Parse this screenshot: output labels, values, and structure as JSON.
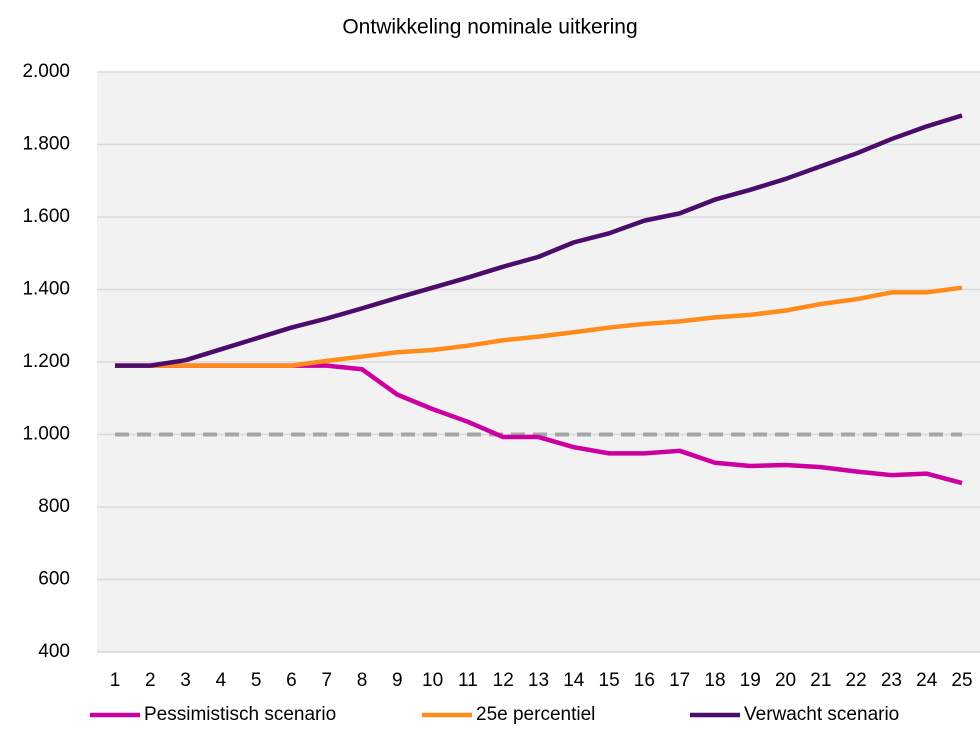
{
  "chart_data": {
    "type": "line",
    "title": "Ontwikkeling nominale uitkering",
    "categories": [
      "1",
      "2",
      "3",
      "4",
      "5",
      "6",
      "7",
      "8",
      "9",
      "10",
      "11",
      "12",
      "13",
      "14",
      "15",
      "16",
      "17",
      "18",
      "19",
      "20",
      "21",
      "22",
      "23",
      "24",
      "25"
    ],
    "series": [
      {
        "name": "Pessimistisch scenario",
        "color": "#cc00a0",
        "values": [
          1190,
          1190,
          1190,
          1190,
          1190,
          1190,
          1190,
          1180,
          1110,
          1070,
          1035,
          993,
          993,
          965,
          948,
          948,
          955,
          922,
          913,
          916,
          910,
          898,
          888,
          892,
          866
        ]
      },
      {
        "name": "25e percentiel",
        "color": "#ff8c1a",
        "values": [
          1190,
          1190,
          1190,
          1190,
          1190,
          1190,
          1203,
          1215,
          1227,
          1233,
          1245,
          1260,
          1270,
          1282,
          1295,
          1305,
          1312,
          1323,
          1330,
          1342,
          1360,
          1373,
          1392,
          1392,
          1405
        ]
      },
      {
        "name": "Verwacht scenario",
        "color": "#4b0d6b",
        "values": [
          1190,
          1190,
          1205,
          1235,
          1265,
          1295,
          1320,
          1348,
          1377,
          1405,
          1433,
          1463,
          1490,
          1530,
          1555,
          1590,
          1610,
          1648,
          1675,
          1705,
          1740,
          1775,
          1815,
          1850,
          1880
        ]
      }
    ],
    "reference_line": 1000,
    "ylim": [
      400,
      2000
    ],
    "yticks": [
      {
        "value": 400,
        "label": "400"
      },
      {
        "value": 600,
        "label": "600"
      },
      {
        "value": 800,
        "label": "800"
      },
      {
        "value": 1000,
        "label": "1.000"
      },
      {
        "value": 1200,
        "label": "1.200"
      },
      {
        "value": 1400,
        "label": "1.400"
      },
      {
        "value": 1600,
        "label": "1.600"
      },
      {
        "value": 1800,
        "label": "1.800"
      },
      {
        "value": 2000,
        "label": "2.000"
      }
    ],
    "grid": true,
    "legend": "bottom"
  }
}
